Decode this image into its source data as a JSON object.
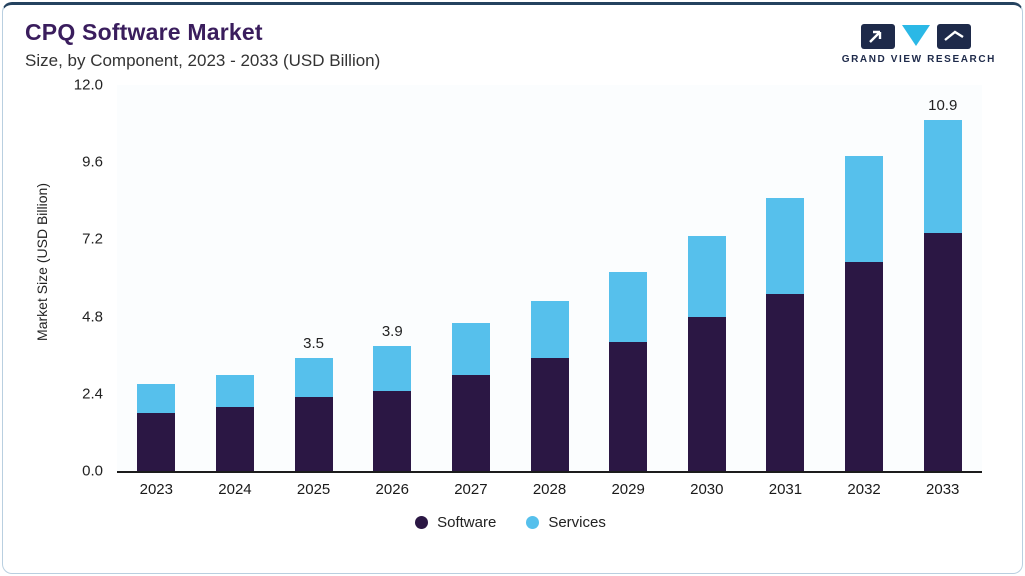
{
  "header": {
    "title": "CPQ Software Market",
    "subtitle": "Size, by Component, 2023 - 2033 (USD Billion)",
    "logo_text": "GRAND VIEW RESEARCH"
  },
  "colors": {
    "software": "#2b1744",
    "services": "#56c0ec",
    "title": "#3a1d5d",
    "logo_navy": "#1e2a4a",
    "logo_cyan": "#2bb8e6",
    "border": "#b9cfe0",
    "accent_line": "#24425f"
  },
  "chart_data": {
    "type": "bar",
    "stacked": true,
    "title": "CPQ Software Market",
    "subtitle": "Size, by Component, 2023 - 2033 (USD Billion)",
    "ylabel": "Market Size (USD Billion)",
    "xlabel": "",
    "categories": [
      "2023",
      "2024",
      "2025",
      "2026",
      "2027",
      "2028",
      "2029",
      "2030",
      "2031",
      "2032",
      "2033"
    ],
    "series": [
      {
        "name": "Software",
        "color_key": "software",
        "values": [
          1.8,
          2.0,
          2.3,
          2.5,
          3.0,
          3.5,
          4.0,
          4.8,
          5.5,
          6.5,
          7.4
        ]
      },
      {
        "name": "Services",
        "color_key": "services",
        "values": [
          0.9,
          1.0,
          1.2,
          1.4,
          1.6,
          1.8,
          2.2,
          2.5,
          3.0,
          3.3,
          3.5
        ]
      }
    ],
    "total_labels": [
      "",
      "",
      "3.5",
      "3.9",
      "",
      "",
      "",
      "",
      "",
      "",
      "10.9"
    ],
    "y_ticks": [
      0.0,
      2.4,
      4.8,
      7.2,
      9.6,
      12.0
    ],
    "ymax": 12.0,
    "grid": false,
    "legend": [
      "Software",
      "Services"
    ],
    "legend_position": "bottom"
  }
}
